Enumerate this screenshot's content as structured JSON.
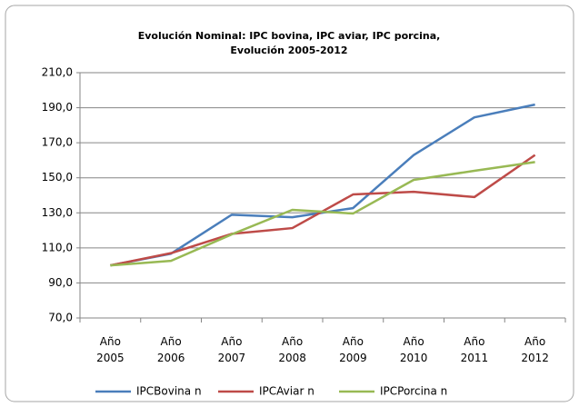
{
  "chart_data": {
    "type": "line",
    "title": [
      "Evolución  Nominal: IPC bovina, IPC aviar, IPC porcina,",
      "Evolución  2005-2012"
    ],
    "categories": [
      "Año 2005",
      "Año 2006",
      "Año 2007",
      "Año 2008",
      "Año 2009",
      "Año 2010",
      "Año 2011",
      "Año 2012"
    ],
    "series": [
      {
        "name": "IPCBovina n",
        "color": "#4a7ebb",
        "values": [
          100,
          106.7,
          128.9,
          127.5,
          132.7,
          163,
          184.5,
          191.8
        ]
      },
      {
        "name": "IPCAviar n",
        "color": "#be4b48",
        "values": [
          100,
          107,
          118,
          121.3,
          140.5,
          142,
          139,
          163
        ]
      },
      {
        "name": "IPCPorcina n",
        "color": "#98b954",
        "values": [
          100,
          102.6,
          117.7,
          131.7,
          129.6,
          148.8,
          154,
          159
        ]
      }
    ],
    "ylim": [
      70,
      210
    ],
    "yticks": [
      {
        "value": 70,
        "label": "70,0"
      },
      {
        "value": 90,
        "label": "90,0"
      },
      {
        "value": 110,
        "label": "110,0"
      },
      {
        "value": 130,
        "label": "130,0"
      },
      {
        "value": 150,
        "label": "150,0"
      },
      {
        "value": 170,
        "label": "170,0"
      },
      {
        "value": 190,
        "label": "190,0"
      },
      {
        "value": 210,
        "label": "210,0"
      }
    ],
    "grid": true,
    "legend": "bottom"
  }
}
